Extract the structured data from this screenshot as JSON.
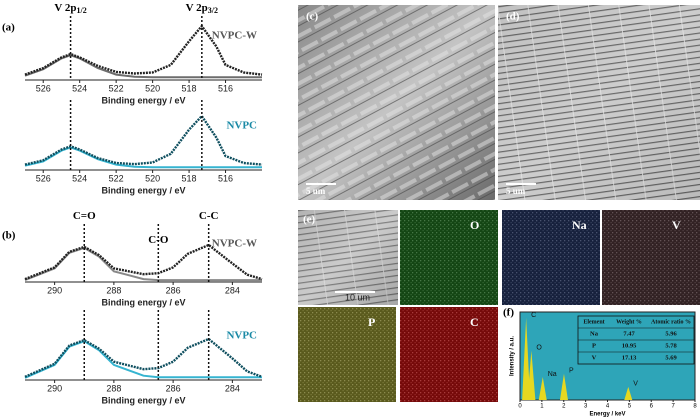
{
  "chart_data": [
    {
      "type": "line",
      "panel": "(a)",
      "label": "NVPC-W",
      "label_color": "#555555",
      "xlabel": "Binding energy / eV",
      "xlim": [
        527,
        514
      ],
      "xticks": [
        526,
        524,
        522,
        520,
        518,
        516
      ],
      "ylim": [
        0,
        1.15
      ],
      "peak_lines": [
        524.5,
        517.3
      ],
      "peak_labels": [
        {
          "text": "V 2p",
          "sub": "1/2"
        },
        {
          "text": "V 2p",
          "sub": "3/2"
        }
      ],
      "x": [
        527,
        526,
        525,
        524.5,
        524,
        523,
        522,
        521,
        520,
        519,
        518,
        517.3,
        516.5,
        516,
        515,
        514
      ],
      "series": [
        {
          "color": "#222222",
          "values": [
            0.1,
            0.22,
            0.42,
            0.48,
            0.42,
            0.26,
            0.15,
            0.12,
            0.14,
            0.28,
            0.72,
            1.0,
            0.62,
            0.28,
            0.14,
            0.1
          ]
        },
        {
          "color": "#6d6d6d",
          "values": [
            0.08,
            0.2,
            0.4,
            0.46,
            0.4,
            0.22,
            0.1,
            0.06,
            0.05,
            0.05,
            0.05,
            0.05,
            0.05,
            0.05,
            0.05,
            0.05
          ]
        }
      ]
    },
    {
      "type": "line",
      "label": "NVPC",
      "label_color": "#1a8aa6",
      "xlabel": "Binding energy / eV",
      "xlim": [
        527,
        514
      ],
      "xticks": [
        526,
        524,
        522,
        520,
        518,
        516
      ],
      "ylim": [
        0,
        1.15
      ],
      "peak_lines": [
        524.5,
        517.3
      ],
      "x": [
        527,
        526,
        525,
        524.5,
        524,
        523,
        522,
        521,
        520,
        519,
        518,
        517.3,
        516.5,
        516,
        515,
        514
      ],
      "series": [
        {
          "color": "#0f4f5f",
          "values": [
            0.1,
            0.18,
            0.38,
            0.44,
            0.38,
            0.22,
            0.13,
            0.11,
            0.14,
            0.3,
            0.75,
            1.0,
            0.6,
            0.26,
            0.13,
            0.1
          ]
        },
        {
          "color": "#35b4d0",
          "values": [
            0.08,
            0.16,
            0.36,
            0.42,
            0.36,
            0.2,
            0.1,
            0.06,
            0.05,
            0.05,
            0.05,
            0.05,
            0.05,
            0.05,
            0.05,
            0.05
          ]
        }
      ]
    },
    {
      "type": "line",
      "panel": "(b)",
      "label": "NVPC-W",
      "label_color": "#555555",
      "xlabel": "Binding energy / eV",
      "xlim": [
        291,
        283
      ],
      "xticks": [
        290,
        288,
        286,
        284
      ],
      "ylim": [
        0,
        1.15
      ],
      "peak_lines": [
        289,
        286.5,
        284.8
      ],
      "peak_labels": [
        {
          "text": "C=O"
        },
        {
          "text": "C-O"
        },
        {
          "text": "C-C"
        }
      ],
      "x": [
        291,
        290,
        289.5,
        289,
        288.5,
        288,
        287,
        286.5,
        286,
        285.5,
        284.8,
        284,
        283.5,
        283
      ],
      "series": [
        {
          "color": "#222222",
          "values": [
            0.06,
            0.3,
            0.62,
            0.72,
            0.55,
            0.28,
            0.16,
            0.18,
            0.3,
            0.58,
            0.76,
            0.38,
            0.15,
            0.06
          ]
        },
        {
          "color": "#888888",
          "values": [
            0.04,
            0.28,
            0.6,
            0.7,
            0.52,
            0.22,
            0.06,
            0.04,
            0.04,
            0.04,
            0.04,
            0.04,
            0.04,
            0.04
          ]
        }
      ]
    },
    {
      "type": "line",
      "label": "NVPC",
      "label_color": "#1a8aa6",
      "xlabel": "Binding energy / eV",
      "xlim": [
        291,
        283
      ],
      "xticks": [
        290,
        288,
        286,
        284
      ],
      "ylim": [
        0,
        1.15
      ],
      "peak_lines": [
        289,
        286.5,
        284.8
      ],
      "x": [
        291,
        290,
        289.5,
        289,
        288.5,
        288,
        287,
        286.5,
        286,
        285.5,
        284.8,
        284,
        283.5,
        283
      ],
      "series": [
        {
          "color": "#0f4f5f",
          "values": [
            0.06,
            0.3,
            0.64,
            0.74,
            0.58,
            0.34,
            0.2,
            0.22,
            0.34,
            0.6,
            0.76,
            0.4,
            0.16,
            0.06
          ]
        },
        {
          "color": "#35b4d0",
          "values": [
            0.04,
            0.28,
            0.62,
            0.72,
            0.55,
            0.28,
            0.08,
            0.05,
            0.05,
            0.05,
            0.05,
            0.05,
            0.05,
            0.05
          ]
        }
      ]
    }
  ],
  "sem": [
    {
      "panel": "(c)",
      "scale": "5 um"
    },
    {
      "panel": "(d)",
      "scale": "5 um"
    }
  ],
  "maps": {
    "panel": "(e)",
    "scale": "10 um",
    "elements": [
      "O",
      "Na",
      "V",
      "P",
      "C"
    ]
  },
  "eds": {
    "panel": "(f)",
    "ylabel": "Intensity / a.u.",
    "xlabel": "Energy / keV",
    "xlim": [
      0,
      8
    ],
    "xticks": [
      0,
      1,
      2,
      3,
      4,
      5,
      6,
      7,
      8
    ],
    "peaks": [
      {
        "label": "C",
        "x": 0.28,
        "h": 1.0
      },
      {
        "label": "O",
        "x": 0.52,
        "h": 0.6
      },
      {
        "label": "Na",
        "x": 1.04,
        "h": 0.28
      },
      {
        "label": "P",
        "x": 2.01,
        "h": 0.32
      },
      {
        "label": "V",
        "x": 4.95,
        "h": 0.16
      }
    ],
    "table": {
      "header": [
        "Element",
        "Weight %",
        "Atomic ratio %"
      ],
      "rows": [
        [
          "Na",
          "7.47",
          "5.96"
        ],
        [
          "P",
          "10.95",
          "5.78"
        ],
        [
          "V",
          "17.13",
          "5.69"
        ]
      ]
    }
  }
}
